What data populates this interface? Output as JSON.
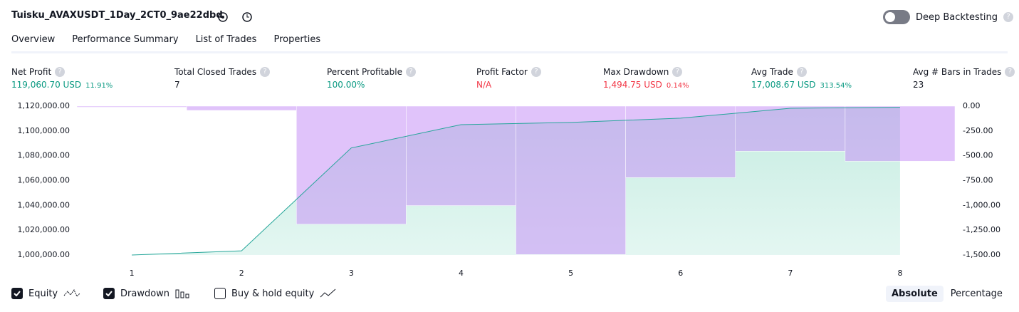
{
  "header": {
    "title": "Tuisku_AVAXUSDT_1Day_2CT0_9ae22dbd",
    "deep_backtesting": "Deep Backtesting"
  },
  "tabs": [
    "Overview",
    "Performance Summary",
    "List of Trades",
    "Properties"
  ],
  "metrics": [
    {
      "label": "Net Profit",
      "value": "119,060.70 USD",
      "pct": "11.91%",
      "tone": "green"
    },
    {
      "label": "Total Closed Trades",
      "value": "7"
    },
    {
      "label": "Percent Profitable",
      "value": "100.00%",
      "tone": "green"
    },
    {
      "label": "Profit Factor",
      "value": "N/A",
      "tone": "red"
    },
    {
      "label": "Max Drawdown",
      "value": "1,494.75 USD",
      "pct": "0.14%",
      "tone": "red"
    },
    {
      "label": "Avg Trade",
      "value": "17,008.67 USD",
      "pct": "313.54%",
      "tone": "green"
    },
    {
      "label": "Avg # Bars in Trades",
      "value": "23"
    }
  ],
  "chart_data": {
    "type": "line",
    "x": [
      1,
      2,
      3,
      4,
      5,
      6,
      7,
      8
    ],
    "xlim": [
      0.5,
      8.5
    ],
    "xticks": [
      1,
      2,
      3,
      4,
      5,
      6,
      7,
      8
    ],
    "series": [
      {
        "name": "Equity",
        "color": "#26a69a",
        "values": [
          1000000,
          1003400,
          1086300,
          1105100,
          1106900,
          1110300,
          1118300,
          1119060.7
        ]
      },
      {
        "name": "Drawdown",
        "color": "#c792f5",
        "axis": "y2",
        "values": [
          0,
          -43,
          -1190,
          -1002,
          -1494.75,
          -720,
          -454,
          -555
        ]
      }
    ],
    "ylim": [
      1000000,
      1120000
    ],
    "yticks": [
      {
        "value": 1000000,
        "label": "1,000,000.00"
      },
      {
        "value": 1020000,
        "label": "1,020,000.00"
      },
      {
        "value": 1040000,
        "label": "1,040,000.00"
      },
      {
        "value": 1060000,
        "label": "1,060,000.00"
      },
      {
        "value": 1080000,
        "label": "1,080,000.00"
      },
      {
        "value": 1100000,
        "label": "1,100,000.00"
      },
      {
        "value": 1120000,
        "label": "1,120,000.00"
      }
    ],
    "y2lim": [
      -1500,
      0
    ],
    "y2ticks": [
      {
        "value": 0,
        "label": "0.00"
      },
      {
        "value": -250,
        "label": "-250.00"
      },
      {
        "value": -500,
        "label": "-500.00"
      },
      {
        "value": -750,
        "label": "-750.00"
      },
      {
        "value": -1000,
        "label": "-1,000.00"
      },
      {
        "value": -1250,
        "label": "-1,250.00"
      },
      {
        "value": -1500,
        "label": "-1,500.00"
      }
    ]
  },
  "legend": {
    "buy_hold": "Buy & hold equity",
    "absolute": "Absolute",
    "percentage": "Percentage"
  }
}
